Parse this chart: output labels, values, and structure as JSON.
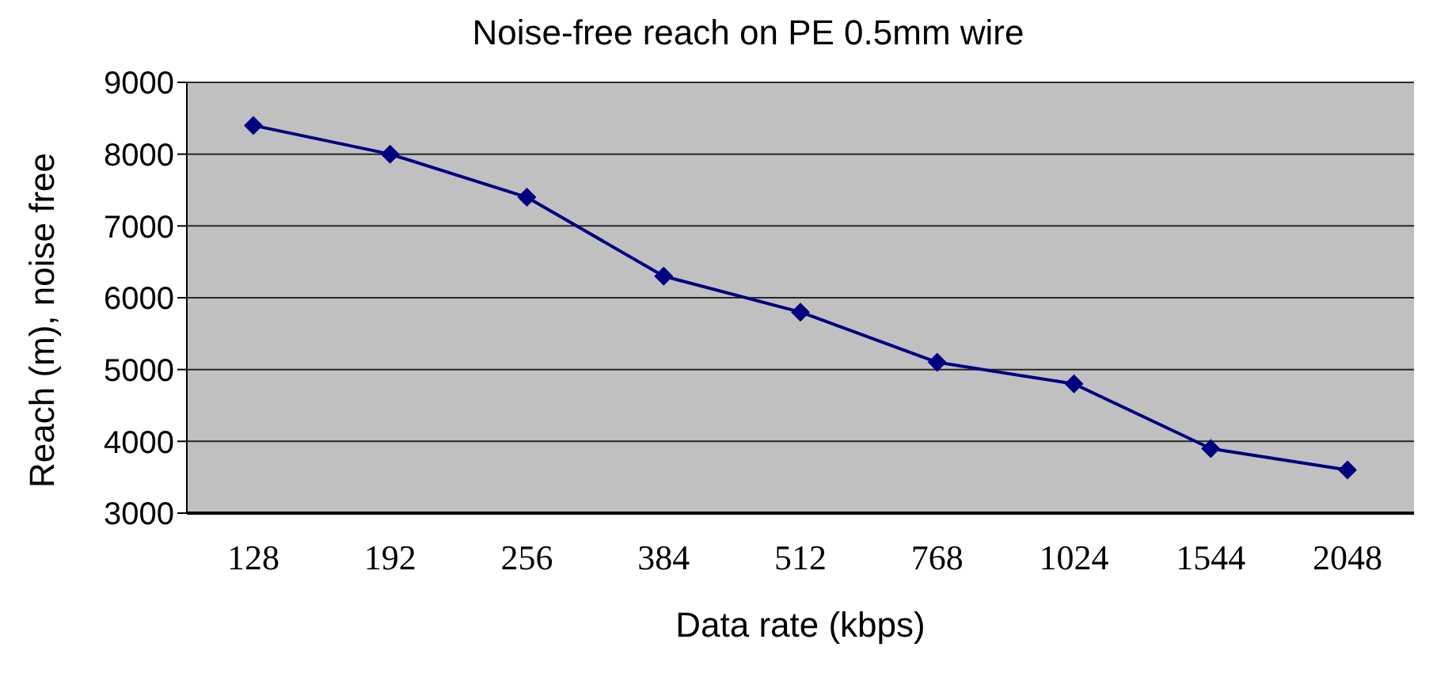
{
  "chart_data": {
    "type": "line",
    "title": "Noise-free reach on PE 0.5mm wire",
    "xlabel": "Data rate (kbps)",
    "ylabel": "Reach (m), noise free",
    "categories": [
      "128",
      "192",
      "256",
      "384",
      "512",
      "768",
      "1024",
      "1544",
      "2048"
    ],
    "series": [
      {
        "color": "#000080",
        "values": [
          8400,
          8000,
          7400,
          6300,
          5800,
          5100,
          4800,
          3900,
          3600
        ]
      }
    ],
    "ylim": [
      3000,
      9000
    ],
    "yticks": [
      3000,
      4000,
      5000,
      6000,
      7000,
      8000,
      9000
    ],
    "grid": "y",
    "marker": "diamond",
    "line_style": "solid",
    "legend": false
  }
}
